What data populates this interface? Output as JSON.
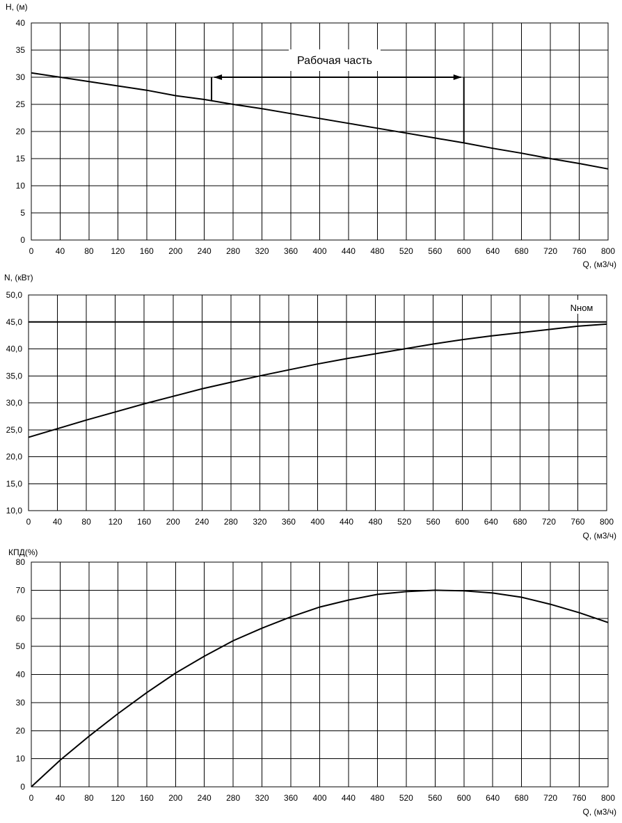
{
  "chart_data": [
    {
      "type": "line",
      "title": "",
      "xlabel": "Q, (м3/ч)",
      "ylabel": "H, (м)",
      "xlim": [
        0,
        800
      ],
      "ylim": [
        0,
        40
      ],
      "x_ticks": [
        "0",
        "40",
        "80",
        "120",
        "160",
        "200",
        "240",
        "280",
        "320",
        "360",
        "400",
        "440",
        "480",
        "520",
        "560",
        "600",
        "640",
        "680",
        "720",
        "760",
        "800"
      ],
      "y_ticks": [
        "0",
        "5",
        "10",
        "15",
        "20",
        "25",
        "30",
        "35",
        "40"
      ],
      "grid": true,
      "series": [
        {
          "x": [
            0,
            40,
            80,
            120,
            160,
            200,
            240,
            280,
            320,
            360,
            400,
            440,
            480,
            520,
            560,
            600,
            640,
            680,
            720,
            760,
            800
          ],
          "y": [
            30.8,
            30.0,
            29.2,
            28.4,
            27.6,
            26.6,
            25.9,
            25.0,
            24.2,
            23.3,
            22.4,
            21.5,
            20.6,
            19.7,
            18.8,
            17.9,
            16.9,
            16.0,
            15.0,
            14.1,
            13.1
          ]
        }
      ],
      "annotations": [
        {
          "text": "Рабочая часть",
          "x_range": [
            250,
            600
          ],
          "y": 30
        }
      ]
    },
    {
      "type": "line",
      "title": "",
      "xlabel": "Q, (м3/ч)",
      "ylabel": "N, (кВт)",
      "xlim": [
        0,
        800
      ],
      "ylim": [
        10,
        50
      ],
      "x_ticks": [
        "0",
        "40",
        "80",
        "120",
        "160",
        "200",
        "240",
        "280",
        "320",
        "360",
        "400",
        "440",
        "480",
        "520",
        "560",
        "600",
        "640",
        "680",
        "720",
        "760",
        "800"
      ],
      "y_ticks": [
        "10,0",
        "15,0",
        "20,0",
        "25,0",
        "30,0",
        "35,0",
        "40,0",
        "45,0",
        "50,0"
      ],
      "grid": true,
      "series": [
        {
          "x": [
            0,
            40,
            80,
            120,
            160,
            200,
            240,
            280,
            320,
            360,
            400,
            440,
            480,
            520,
            560,
            600,
            640,
            680,
            720,
            760,
            800
          ],
          "y": [
            23.6,
            25.2,
            26.8,
            28.3,
            29.8,
            31.2,
            32.6,
            33.8,
            35.0,
            36.1,
            37.2,
            38.2,
            39.1,
            40.0,
            40.9,
            41.7,
            42.4,
            43.0,
            43.6,
            44.2,
            44.6
          ]
        }
      ],
      "reference_line": {
        "label": "Nном",
        "y": 45
      }
    },
    {
      "type": "line",
      "title": "",
      "xlabel": "Q, (м3/ч)",
      "ylabel": "КПД(%)",
      "xlim": [
        0,
        800
      ],
      "ylim": [
        0,
        80
      ],
      "x_ticks": [
        "0",
        "40",
        "80",
        "120",
        "160",
        "200",
        "240",
        "280",
        "320",
        "360",
        "400",
        "440",
        "480",
        "520",
        "560",
        "600",
        "640",
        "680",
        "720",
        "760",
        "800"
      ],
      "y_ticks": [
        "0",
        "10",
        "20",
        "30",
        "40",
        "50",
        "60",
        "70",
        "80"
      ],
      "grid": true,
      "series": [
        {
          "x": [
            0,
            40,
            80,
            120,
            160,
            200,
            240,
            280,
            320,
            360,
            400,
            440,
            480,
            520,
            560,
            600,
            640,
            680,
            720,
            760,
            800
          ],
          "y": [
            0,
            9.5,
            18.0,
            26.0,
            33.5,
            40.5,
            46.5,
            52.0,
            56.5,
            60.5,
            64.0,
            66.5,
            68.5,
            69.5,
            70.0,
            69.8,
            69.0,
            67.5,
            65.0,
            62.0,
            58.5
          ]
        }
      ]
    }
  ]
}
